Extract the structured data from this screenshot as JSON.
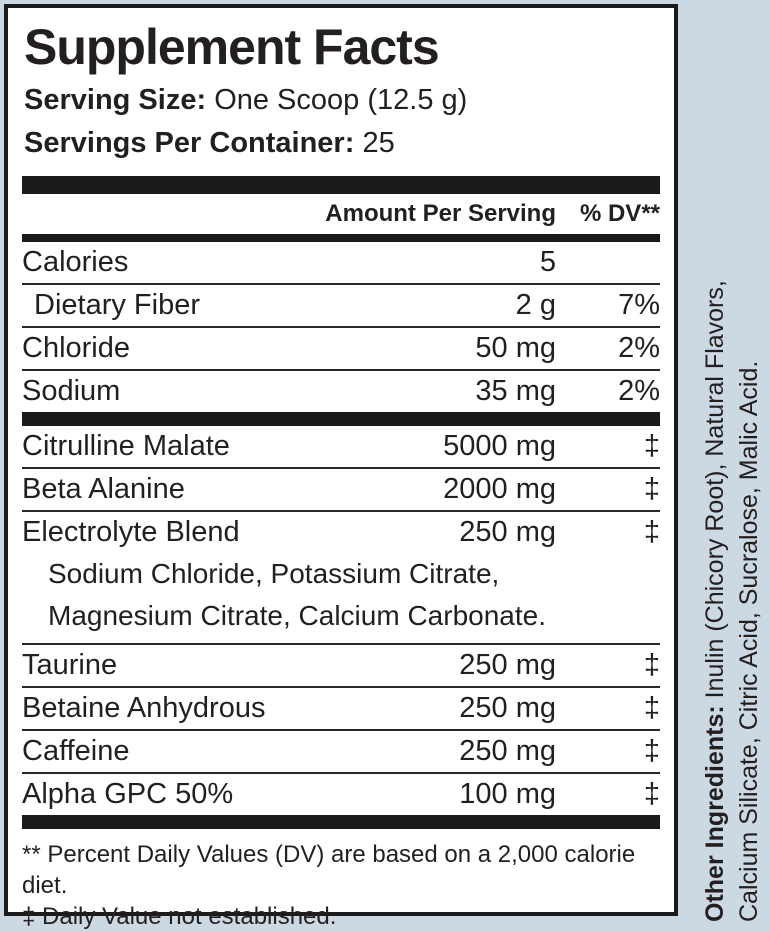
{
  "background_color": "#cdd9e2",
  "label": {
    "title": "Supplement Facts",
    "serving_size": {
      "label": "Serving Size:",
      "value": "One Scoop (12.5 g)"
    },
    "servings_per_container": {
      "label": "Servings Per Container:",
      "value": "25"
    },
    "columns": {
      "amount": "Amount Per Serving",
      "dv": "% DV**"
    },
    "rows": [
      {
        "name": "Calories",
        "amount": "5",
        "dv": ""
      },
      {
        "name": "Dietary Fiber",
        "amount": "2 g",
        "dv": "7%",
        "indent": true
      },
      {
        "name": "Chloride",
        "amount": "50 mg",
        "dv": "2%"
      },
      {
        "name": "Sodium",
        "amount": "35 mg",
        "dv": "2%"
      },
      {
        "name": "Citrulline Malate",
        "amount": "5000 mg",
        "dv": "‡"
      },
      {
        "name": "Beta Alanine",
        "amount": "2000 mg",
        "dv": "‡"
      },
      {
        "name": "Electrolyte Blend",
        "amount": "250 mg",
        "dv": "‡",
        "sub": [
          "Sodium Chloride, Potassium Citrate,",
          "Magnesium Citrate, Calcium Carbonate."
        ]
      },
      {
        "name": "Taurine",
        "amount": "250 mg",
        "dv": "‡"
      },
      {
        "name": "Betaine Anhydrous",
        "amount": "250 mg",
        "dv": "‡"
      },
      {
        "name": "Caffeine",
        "amount": "250 mg",
        "dv": "‡"
      },
      {
        "name": "Alpha GPC 50%",
        "amount": "100 mg",
        "dv": "‡"
      }
    ],
    "footnotes": {
      "dv_note": "** Percent Daily Values (DV) are based on a 2,000 calorie diet.",
      "dagger_note": "‡ Daily Value not established."
    },
    "other_ingredients": {
      "label": "Other Ingredients:",
      "line1_rest": " Inulin (Chicory Root), Natural Flavors,",
      "line2": "Calcium Silicate, Citric Acid, Sucralose, Malic Acid."
    }
  }
}
